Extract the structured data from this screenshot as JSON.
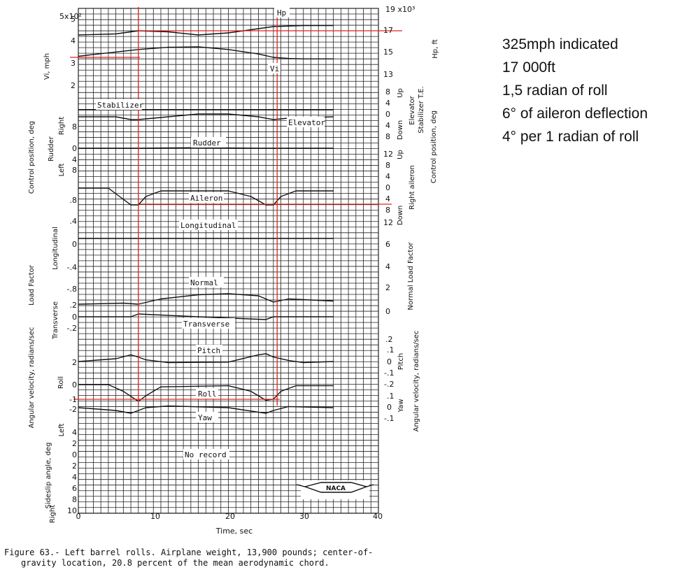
{
  "chart_data": {
    "type": "line",
    "xlabel": "Time, sec",
    "x_ticks": [
      "0",
      "10",
      "20",
      "30",
      "40"
    ],
    "xlim": [
      0,
      40
    ],
    "grid": true,
    "top_left_scale": "5x10²",
    "top_right_scale": "19 x10³",
    "left_ticks": {
      "vi": [
        "5",
        "4",
        "3",
        "2"
      ],
      "rudder": [
        "8",
        "0",
        "4",
        "8"
      ],
      "longitudinal": [
        ".8",
        ".4",
        "0",
        "-.4",
        "-.8"
      ],
      "transverse": [
        ".2",
        "0",
        "-.2"
      ],
      "angular": [
        "2",
        "0",
        "-1",
        "-2"
      ],
      "sideslip": [
        "4",
        "2",
        "0",
        "2",
        "4",
        "6",
        "8",
        "10"
      ]
    },
    "right_ticks": {
      "hp": [
        "19",
        "17",
        "15",
        "13"
      ],
      "elevator": [
        "8",
        "4",
        "0",
        "4",
        "8"
      ],
      "aileron": [
        "12",
        "8",
        "4",
        "0",
        "4",
        "8",
        "12"
      ],
      "load": [
        "6",
        "4",
        "2",
        "0"
      ],
      "pitch": [
        ".2",
        ".1",
        "0",
        "-.1",
        "-.2"
      ],
      "yaw": [
        ".1",
        "0",
        "-.1"
      ]
    },
    "left_titles": [
      "Vi, mph",
      "Control position, deg",
      "Rudder",
      "Right",
      "Left",
      "Load Factor",
      "Longitudinal",
      "Transverse",
      "Angular velocity, radians/sec",
      "Roll",
      "Sideslip angle, deg",
      "Left",
      "Right"
    ],
    "right_titles": [
      "Hp, ft",
      "Control position, deg",
      "Stabilizer T.E.",
      "Elevator",
      "Up",
      "Down",
      "Right aileron",
      "Up",
      "Down",
      "Normal Load Factor",
      "Pitch",
      "Angular velocity, radians/sec",
      "Yaw"
    ],
    "trace_labels": [
      "Hp",
      "Vi",
      "Stabilizer",
      "Elevator",
      "Rudder",
      "Aileron",
      "Longitudinal",
      "Normal",
      "Transverse",
      "Pitch",
      "Roll",
      "Yaw",
      "No record"
    ],
    "series": [
      {
        "name": "Hp",
        "unit": "ft",
        "x": [
          0,
          5,
          8,
          12,
          16,
          20,
          24,
          26,
          28,
          30,
          34
        ],
        "y": [
          16600,
          16700,
          17000,
          16900,
          16600,
          16800,
          17200,
          17400,
          17450,
          17500,
          17500
        ]
      },
      {
        "name": "Vi",
        "unit": "mph",
        "x": [
          0,
          4,
          8,
          12,
          16,
          20,
          24,
          26,
          28,
          30,
          34
        ],
        "y": [
          330,
          345,
          360,
          370,
          372,
          360,
          340,
          325,
          320,
          318,
          318
        ]
      },
      {
        "name": "Stabilizer",
        "x": [
          0,
          34
        ],
        "y": [
          0.5,
          0.5
        ]
      },
      {
        "name": "Elevator",
        "x": [
          0,
          5,
          7,
          8,
          12,
          16,
          20,
          24,
          26,
          28,
          34
        ],
        "y": [
          0,
          0,
          -1,
          -1,
          0,
          1,
          1,
          0,
          -1,
          -0.5,
          0
        ]
      },
      {
        "name": "Rudder",
        "x": [
          0,
          8,
          16,
          24,
          34
        ],
        "y": [
          0,
          0,
          0.2,
          0,
          0
        ]
      },
      {
        "name": "Aileron",
        "x": [
          0,
          4,
          6,
          7,
          8,
          9,
          11,
          20,
          23,
          25,
          26,
          27,
          29,
          34
        ],
        "y": [
          0,
          0,
          -4,
          -6,
          -6,
          -3,
          -1,
          -1,
          -3,
          -6,
          -6,
          -3,
          -1,
          -1
        ]
      },
      {
        "name": "Longitudinal",
        "x": [
          0,
          34
        ],
        "y": [
          0,
          0
        ]
      },
      {
        "name": "Normal",
        "x": [
          0,
          6,
          8,
          11,
          16,
          20,
          24,
          26,
          28,
          34
        ],
        "y": [
          0.8,
          0.9,
          0.8,
          1.3,
          1.7,
          1.8,
          1.6,
          1.0,
          1.3,
          1.1
        ]
      },
      {
        "name": "Transverse",
        "x": [
          0,
          7,
          8,
          16,
          25,
          26,
          34
        ],
        "y": [
          0,
          0,
          0.05,
          0,
          -0.05,
          0,
          0
        ]
      },
      {
        "name": "Pitch",
        "x": [
          0,
          5,
          7,
          8,
          9,
          12,
          20,
          24,
          25,
          26,
          28,
          30,
          34
        ],
        "y": [
          0,
          0.05,
          0.12,
          0.08,
          0.03,
          -0.02,
          -0.01,
          0.12,
          0.14,
          0.08,
          0.02,
          -0.02,
          0
        ]
      },
      {
        "name": "Roll",
        "x": [
          0,
          4,
          6,
          8,
          9,
          11,
          20,
          23,
          25,
          26,
          27,
          29,
          34
        ],
        "y": [
          0,
          0,
          -0.6,
          -1.5,
          -1,
          -0.2,
          -0.1,
          -0.6,
          -1.4,
          -1.3,
          -0.6,
          -0.1,
          -0.1
        ]
      },
      {
        "name": "Yaw",
        "x": [
          0,
          5,
          7,
          8,
          9,
          12,
          20,
          24,
          25,
          26,
          28,
          34
        ],
        "y": [
          0,
          -0.05,
          -0.1,
          -0.05,
          0,
          0.03,
          0,
          -0.08,
          -0.1,
          -0.05,
          0.02,
          0
        ]
      }
    ],
    "reference_lines": {
      "vertical_time": [
        8,
        26.5
      ]
    }
  },
  "caption": {
    "line1": "Figure 63.- Left barrel rolls.  Airplane weight, 13,900 pounds; center-of-",
    "line2": "gravity location, 20.8 percent of the mean aerodynamic chord."
  },
  "notes": [
    "325mph indicated",
    "17 000ft",
    "1,5 radian of roll",
    "6° of aileron deflection",
    "4° per 1 radian of roll"
  ],
  "logo_text": "NACA",
  "colors": {
    "ink": "#111111",
    "grid": "#222222",
    "annotation": "#e0241b",
    "background": "#ffffff"
  }
}
